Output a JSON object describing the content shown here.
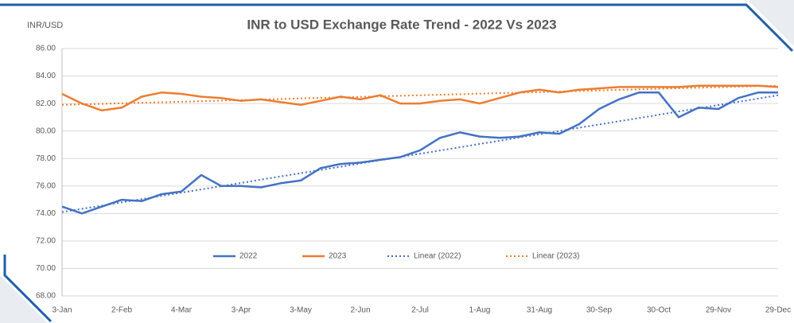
{
  "chart_data": {
    "type": "line",
    "title": "INR to USD Exchange Rate Trend - 2022 Vs 2023",
    "y_label": "INR/USD",
    "categories": [
      "3-Jan",
      null,
      null,
      "2-Feb",
      null,
      null,
      "4-Mar",
      null,
      null,
      "3-Apr",
      null,
      null,
      "3-May",
      null,
      null,
      "2-Jun",
      null,
      null,
      "2-Jul",
      null,
      null,
      "1-Aug",
      null,
      null,
      "31-Aug",
      null,
      null,
      "30-Sep",
      null,
      null,
      "30-Oct",
      null,
      null,
      "29-Nov",
      null,
      null,
      "29-Dec"
    ],
    "series": [
      {
        "name": "2022",
        "color": "#4472c4",
        "dash": false,
        "values": [
          74.5,
          74.0,
          74.5,
          75.0,
          74.9,
          75.4,
          75.6,
          76.8,
          76.0,
          76.0,
          75.9,
          76.2,
          76.4,
          77.3,
          77.6,
          77.7,
          77.9,
          78.1,
          78.6,
          79.5,
          79.9,
          79.6,
          79.5,
          79.6,
          79.9,
          79.8,
          80.5,
          81.6,
          82.3,
          82.8,
          82.8,
          81.0,
          81.7,
          81.6,
          82.4,
          82.8,
          82.8
        ]
      },
      {
        "name": "2023",
        "color": "#ed7d31",
        "dash": false,
        "values": [
          82.7,
          82.0,
          81.5,
          81.7,
          82.5,
          82.8,
          82.7,
          82.5,
          82.4,
          82.2,
          82.3,
          82.1,
          81.9,
          82.2,
          82.5,
          82.3,
          82.6,
          82.0,
          82.0,
          82.2,
          82.3,
          82.0,
          82.4,
          82.8,
          83.0,
          82.8,
          83.0,
          83.1,
          83.2,
          83.2,
          83.2,
          83.2,
          83.3,
          83.3,
          83.3,
          83.3,
          83.2
        ]
      },
      {
        "name": "Linear (2022)",
        "color": "#4472c4",
        "dash": true,
        "values": [
          74.1,
          74.34,
          74.57,
          74.81,
          75.04,
          75.28,
          75.52,
          75.75,
          75.99,
          76.22,
          76.46,
          76.7,
          76.93,
          77.17,
          77.4,
          77.64,
          77.88,
          78.11,
          78.35,
          78.58,
          78.82,
          79.06,
          79.29,
          79.53,
          79.76,
          80.0,
          80.24,
          80.47,
          80.71,
          80.94,
          81.18,
          81.42,
          81.65,
          81.89,
          82.12,
          82.36,
          82.6
        ]
      },
      {
        "name": "Linear (2023)",
        "color": "#ed7d31",
        "dash": true,
        "values": [
          81.9,
          81.94,
          81.98,
          82.02,
          82.06,
          82.09,
          82.13,
          82.17,
          82.21,
          82.25,
          82.29,
          82.33,
          82.37,
          82.41,
          82.44,
          82.48,
          82.52,
          82.56,
          82.6,
          82.64,
          82.68,
          82.72,
          82.76,
          82.79,
          82.83,
          82.87,
          82.91,
          82.95,
          82.99,
          83.03,
          83.07,
          83.11,
          83.15,
          83.18,
          83.22,
          83.26,
          83.3
        ]
      }
    ],
    "ylim": [
      68,
      86
    ],
    "yticks": [
      {
        "value": 68,
        "label": "68.00"
      },
      {
        "value": 70,
        "label": "70.00"
      },
      {
        "value": 72,
        "label": "72.00"
      },
      {
        "value": 74,
        "label": "74.00"
      },
      {
        "value": 76,
        "label": "76.00"
      },
      {
        "value": 78,
        "label": "78.00"
      },
      {
        "value": 80,
        "label": "80.00"
      },
      {
        "value": 82,
        "label": "82.00"
      },
      {
        "value": 84,
        "label": "84.00"
      },
      {
        "value": 86,
        "label": "86.00"
      }
    ],
    "grid": true,
    "legend": "bottom"
  }
}
